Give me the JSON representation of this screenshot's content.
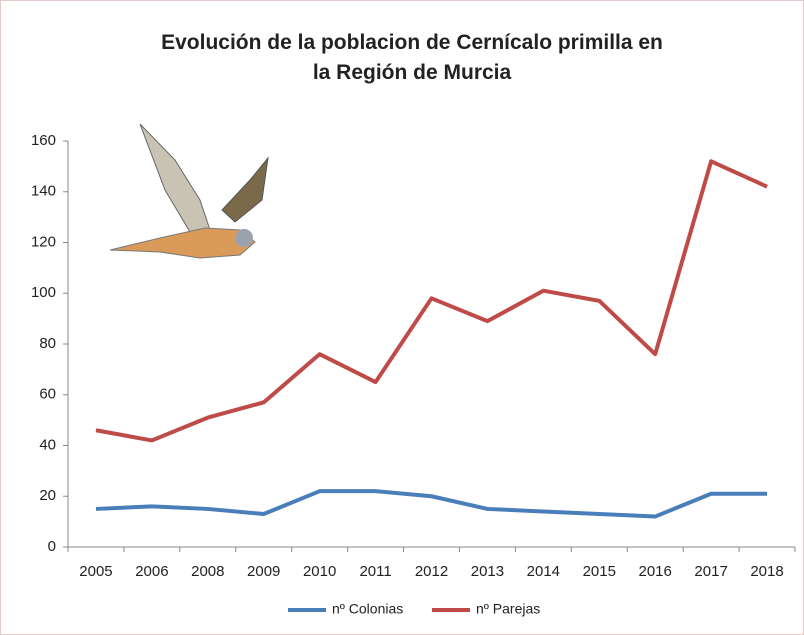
{
  "chart_data": {
    "type": "line",
    "title": "Evolución de la poblacion de Cernícalo primilla en la Región de Murcia",
    "categories": [
      "2005",
      "2006",
      "2008",
      "2009",
      "2010",
      "2011",
      "2012",
      "2013",
      "2014",
      "2015",
      "2016",
      "2017",
      "2018"
    ],
    "series": [
      {
        "name": "nº Colonias",
        "color": "#4a7ebb",
        "values": [
          15,
          16,
          15,
          13,
          22,
          22,
          20,
          15,
          14,
          13,
          12,
          21,
          21
        ]
      },
      {
        "name": "nº Parejas",
        "color": "#be4b48",
        "values": [
          46,
          42,
          51,
          57,
          76,
          65,
          98,
          89,
          101,
          97,
          76,
          152,
          142
        ]
      }
    ],
    "ylim": [
      0,
      160
    ],
    "yticks": [
      0,
      20,
      40,
      60,
      80,
      100,
      120,
      140,
      160
    ],
    "grid": false,
    "legend": "bottom"
  }
}
